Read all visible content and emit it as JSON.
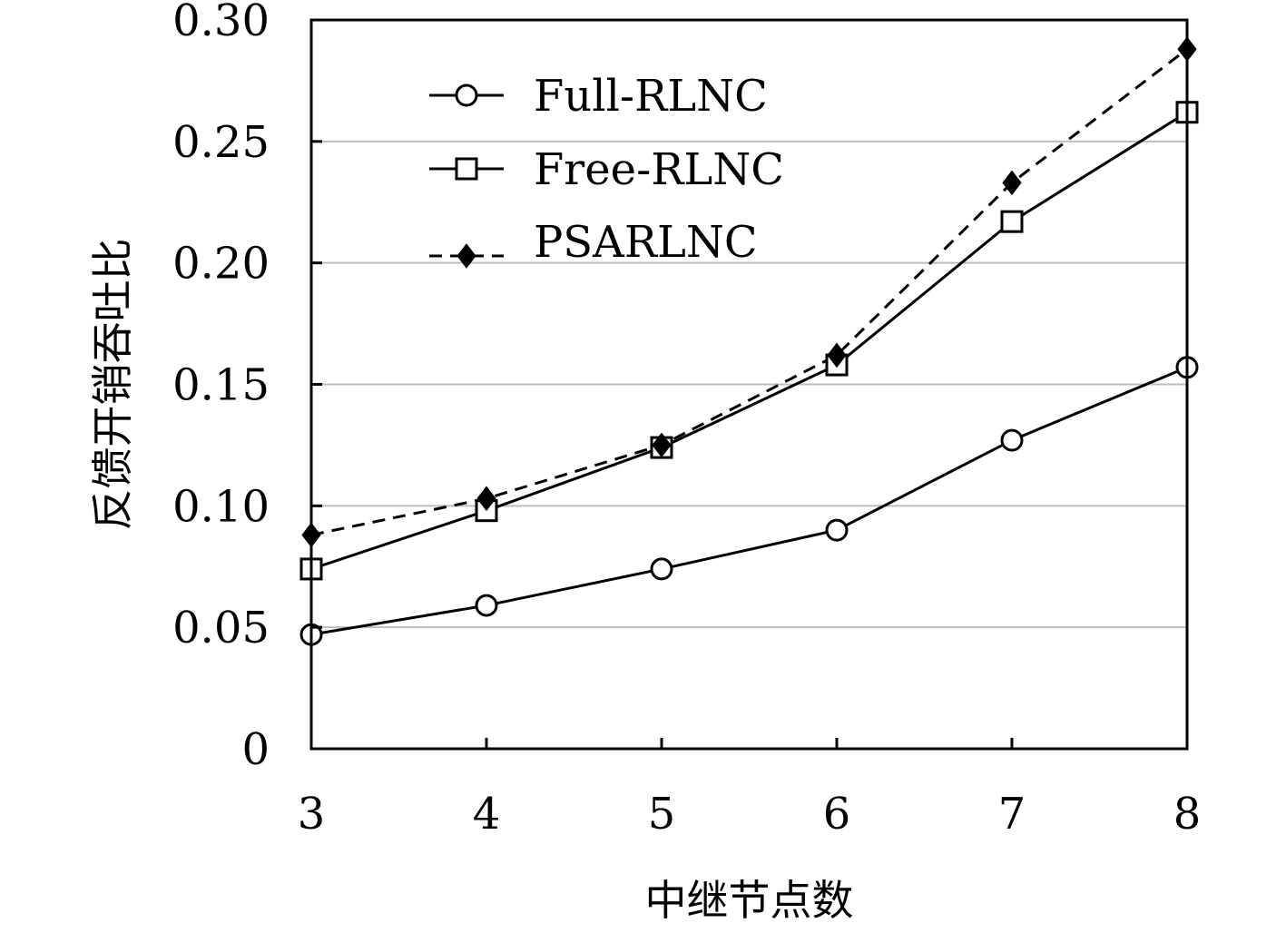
{
  "chart_data": {
    "type": "line",
    "title": "",
    "xlabel": "中继节点数",
    "ylabel": "反馈开销吞吐比",
    "x": [
      3,
      4,
      5,
      6,
      7,
      8
    ],
    "xticks": [
      "3",
      "4",
      "5",
      "6",
      "7",
      "8"
    ],
    "yticks": [
      "0",
      "0.05",
      "0.10",
      "0.15",
      "0.20",
      "0.25",
      "0.30"
    ],
    "ytick_values": [
      0,
      0.05,
      0.1,
      0.15,
      0.2,
      0.25,
      0.3
    ],
    "ylim": [
      0,
      0.3
    ],
    "xlim": [
      3,
      8
    ],
    "grid": "horizontal",
    "legend_position": "top-left",
    "series": [
      {
        "name": "Full-RLNC",
        "values": [
          0.047,
          0.059,
          0.074,
          0.09,
          0.127,
          0.157
        ],
        "marker": "circle",
        "line": "solid",
        "color": "#000000"
      },
      {
        "name": "Free-RLNC",
        "values": [
          0.074,
          0.098,
          0.124,
          0.158,
          0.217,
          0.262
        ],
        "marker": "square",
        "line": "solid",
        "color": "#000000"
      },
      {
        "name": "PSARLNC",
        "values": [
          0.088,
          0.103,
          0.125,
          0.162,
          0.233,
          0.288
        ],
        "marker": "diamond",
        "line": "dashed",
        "color": "#000000"
      }
    ]
  }
}
